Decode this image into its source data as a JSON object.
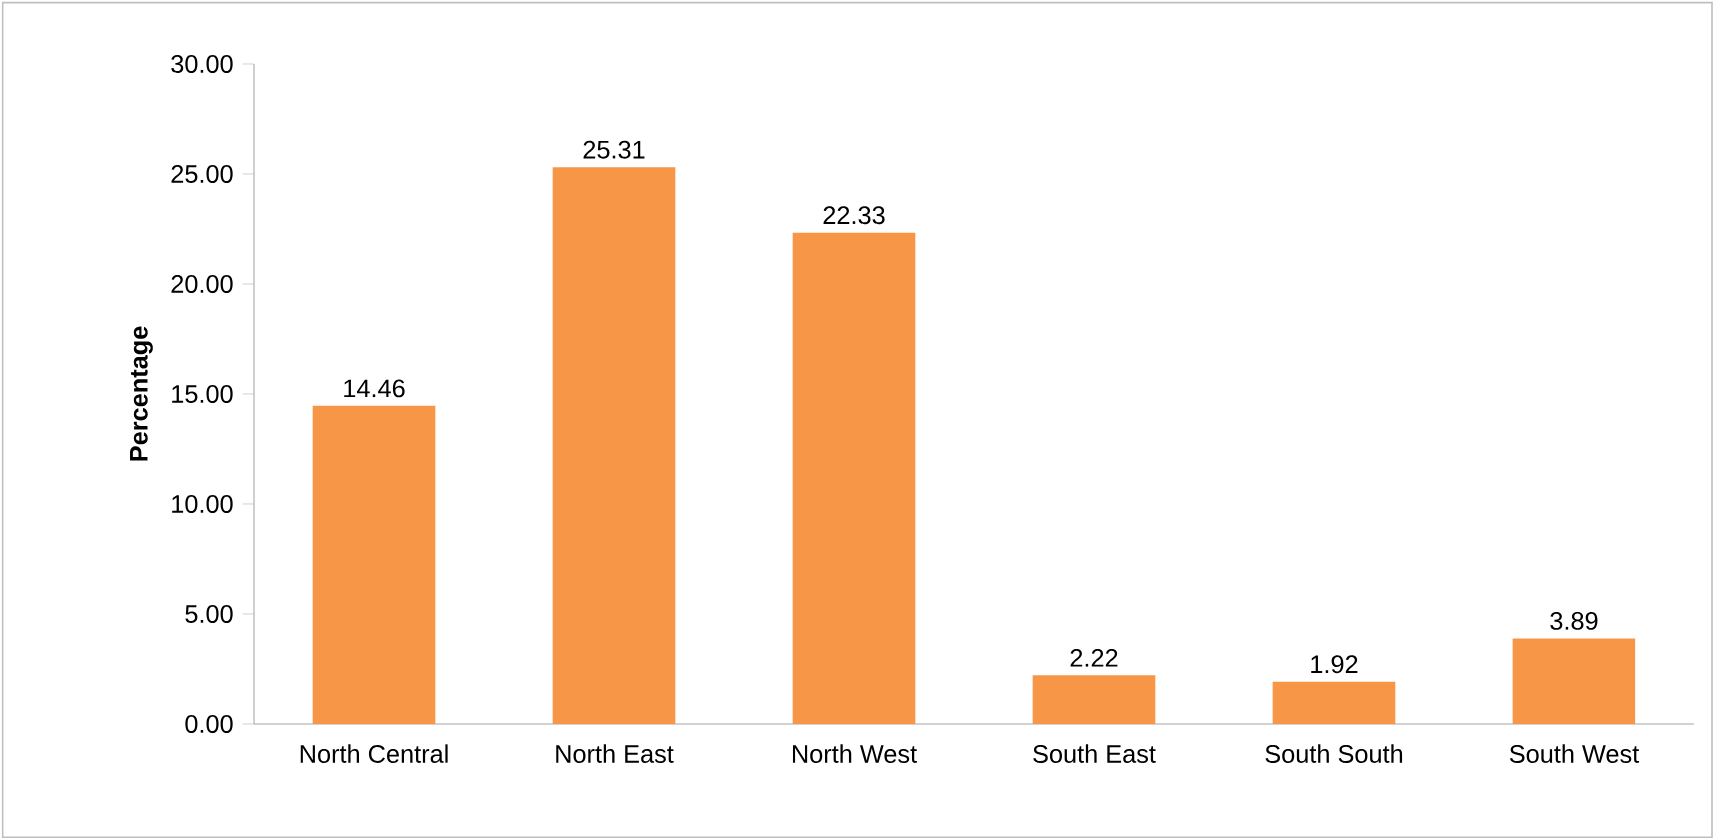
{
  "chart_data": {
    "type": "bar",
    "ylabel": "Percentage",
    "categories": [
      "North Central",
      "North East",
      "North West",
      "South East",
      "South South",
      "South West"
    ],
    "values": [
      14.46,
      25.31,
      22.33,
      2.22,
      1.92,
      3.89
    ],
    "color": "#f79646",
    "ylim": [
      0,
      30
    ],
    "yticks": [
      {
        "value": 0,
        "label": "0.00"
      },
      {
        "value": 5,
        "label": "5.00"
      },
      {
        "value": 10,
        "label": "10.00"
      },
      {
        "value": 15,
        "label": "15.00"
      },
      {
        "value": 20,
        "label": "20.00"
      },
      {
        "value": 25,
        "label": "25.00"
      },
      {
        "value": 30,
        "label": "30.00"
      }
    ],
    "data_labels": true
  }
}
